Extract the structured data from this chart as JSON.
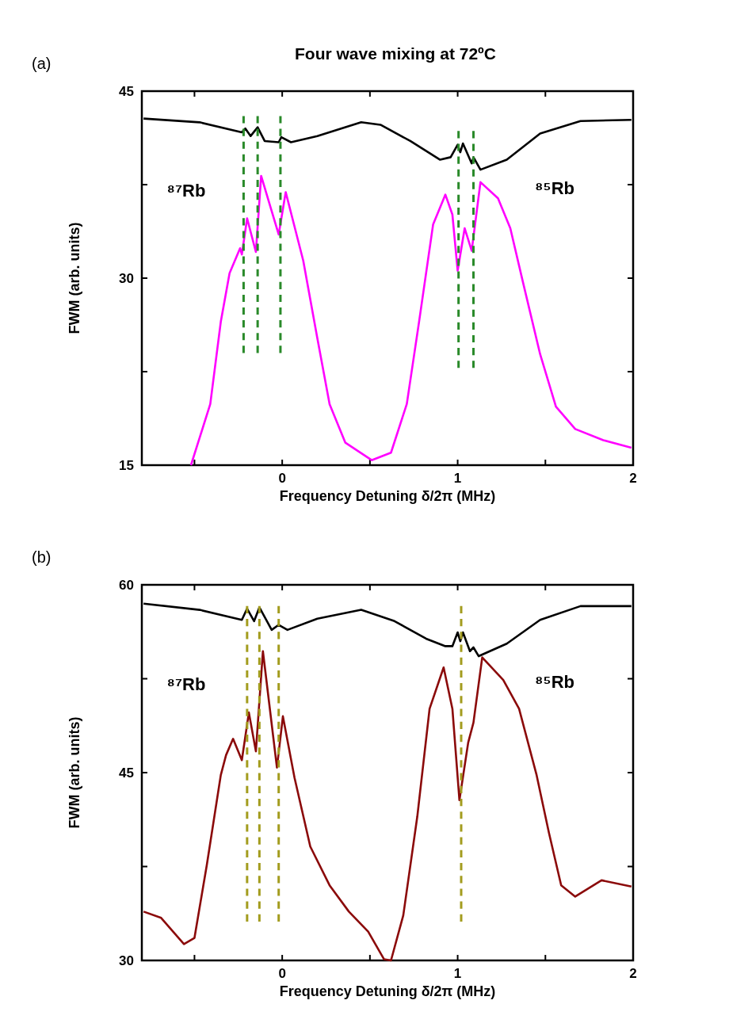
{
  "chart_data": [
    {
      "type": "line",
      "title": "Four wave mixing at 72ºC",
      "xlabel": "Frequency Detuning δ/2π (MHz)",
      "ylabel": "FWM (arb. units)",
      "xlim": [
        -0.8,
        2
      ],
      "xticks": [
        {
          "value": -0.5,
          "label": null
        },
        0,
        {
          "value": 0.5,
          "label": null
        },
        1,
        {
          "value": 1.5,
          "label": null
        },
        2
      ],
      "ylim": [
        15,
        45
      ],
      "yticks": [
        15,
        {
          "value": 22.5,
          "label": null
        },
        30,
        {
          "value": 37.5,
          "label": null
        },
        45
      ],
      "annotations": [
        "(a)",
        "⁸⁷Rb",
        "⁸⁵Rb"
      ],
      "series": [
        {
          "color": "#000000",
          "x": [
            -0.79,
            -0.47,
            -0.23,
            -0.21,
            -0.18,
            -0.14,
            -0.1,
            -0.02,
            -0.005,
            0.05,
            0.2,
            0.45,
            0.56,
            0.73,
            0.9,
            0.96,
            1.0,
            1.015,
            1.03,
            1.08,
            1.09,
            1.13,
            1.28,
            1.47,
            1.7,
            1.99
          ],
          "values": [
            42.8,
            42.5,
            41.7,
            42.0,
            41.4,
            42.1,
            41.0,
            40.9,
            41.3,
            40.9,
            41.4,
            42.5,
            42.3,
            41.0,
            39.5,
            39.7,
            40.7,
            40.1,
            40.8,
            39.2,
            39.7,
            38.7,
            39.5,
            41.6,
            42.6,
            42.7
          ]
        },
        {
          "color": "#ff00ff",
          "x": [
            -0.52,
            -0.41,
            -0.35,
            -0.3,
            -0.24,
            -0.23,
            -0.2,
            -0.15,
            -0.12,
            -0.02,
            0.02,
            0.12,
            0.2,
            0.27,
            0.36,
            0.51,
            0.62,
            0.71,
            0.78,
            0.86,
            0.93,
            0.97,
            1.0,
            1.04,
            1.08,
            1.13,
            1.23,
            1.3,
            1.37,
            1.47,
            1.56,
            1.67,
            1.83,
            1.99
          ],
          "values": [
            15.0,
            19.9,
            26.5,
            30.4,
            32.4,
            31.9,
            34.8,
            32.1,
            38.2,
            33.5,
            36.9,
            31.4,
            25.2,
            19.9,
            16.8,
            15.4,
            16.0,
            19.9,
            26.5,
            34.3,
            36.7,
            35.1,
            30.6,
            34.0,
            32.2,
            37.7,
            36.4,
            34.0,
            29.8,
            23.9,
            19.7,
            17.9,
            17.0,
            16.4
          ]
        },
        {
          "type": "line",
          "line_style": "dashed",
          "color": "#2a8a2a",
          "x": [
            -0.22,
            -0.22
          ],
          "values": [
            43.0,
            24.0
          ]
        },
        {
          "type": "line",
          "line_style": "dashed",
          "color": "#2a8a2a",
          "x": [
            -0.14,
            -0.14
          ],
          "values": [
            43.0,
            24.0
          ]
        },
        {
          "type": "line",
          "line_style": "dashed",
          "color": "#2a8a2a",
          "x": [
            -0.01,
            -0.01
          ],
          "values": [
            43.0,
            24.0
          ]
        },
        {
          "type": "line",
          "line_style": "dashed",
          "color": "#2a8a2a",
          "x": [
            1.005,
            1.005
          ],
          "values": [
            41.8,
            22.8
          ]
        },
        {
          "type": "line",
          "line_style": "dashed",
          "color": "#2a8a2a",
          "x": [
            1.09,
            1.09
          ],
          "values": [
            41.8,
            22.8
          ]
        }
      ]
    },
    {
      "type": "line",
      "xlabel": "Frequency Detuning δ/2π (MHz)",
      "ylabel": "FWM (arb. units)",
      "xlim": [
        -0.8,
        2
      ],
      "xticks": [
        {
          "value": -0.5,
          "label": null
        },
        0,
        {
          "value": 0.5,
          "label": null
        },
        1,
        {
          "value": 1.5,
          "label": null
        },
        2
      ],
      "ylim": [
        30,
        60
      ],
      "yticks": [
        30,
        {
          "value": 37.5,
          "label": null
        },
        45,
        {
          "value": 52.5,
          "label": null
        },
        60
      ],
      "annotations": [
        "(b)",
        "⁸⁷Rb",
        "⁸⁵Rb"
      ],
      "series": [
        {
          "color": "#000000",
          "x": [
            -0.79,
            -0.47,
            -0.23,
            -0.2,
            -0.16,
            -0.13,
            -0.06,
            -0.02,
            0.03,
            0.2,
            0.45,
            0.64,
            0.82,
            0.93,
            0.97,
            1.0,
            1.015,
            1.03,
            1.07,
            1.09,
            1.12,
            1.28,
            1.47,
            1.7,
            1.99
          ],
          "values": [
            58.5,
            58.0,
            57.2,
            58.1,
            57.1,
            58.2,
            56.4,
            56.8,
            56.4,
            57.3,
            58.0,
            57.1,
            55.7,
            55.1,
            55.1,
            56.2,
            55.5,
            56.2,
            54.7,
            55.0,
            54.3,
            55.3,
            57.2,
            58.3,
            58.3
          ]
        },
        {
          "color": "#8b0a0a",
          "x": [
            -0.79,
            -0.69,
            -0.56,
            -0.5,
            -0.43,
            -0.35,
            -0.32,
            -0.28,
            -0.23,
            -0.19,
            -0.15,
            -0.11,
            -0.03,
            0.004,
            0.07,
            0.16,
            0.27,
            0.38,
            0.49,
            0.58,
            0.62,
            0.69,
            0.77,
            0.84,
            0.92,
            0.97,
            1.01,
            1.06,
            1.09,
            1.14,
            1.26,
            1.35,
            1.45,
            1.52,
            1.59,
            1.67,
            1.82,
            1.99
          ],
          "values": [
            33.9,
            33.4,
            31.3,
            31.8,
            37.6,
            44.8,
            46.4,
            47.7,
            46.0,
            49.8,
            46.7,
            54.7,
            45.4,
            49.5,
            44.6,
            39.1,
            36.0,
            33.9,
            32.3,
            30.1,
            30.0,
            33.6,
            41.5,
            50.1,
            53.4,
            50.1,
            42.8,
            47.4,
            49.0,
            54.2,
            52.4,
            50.1,
            44.8,
            40.2,
            36.0,
            35.1,
            36.4,
            35.9
          ]
        },
        {
          "type": "line",
          "line_style": "dashed",
          "color": "#a39c1e",
          "x": [
            -0.2,
            -0.2
          ],
          "values": [
            58.3,
            33.1
          ]
        },
        {
          "type": "line",
          "line_style": "dashed",
          "color": "#a39c1e",
          "x": [
            -0.13,
            -0.13
          ],
          "values": [
            58.3,
            33.1
          ]
        },
        {
          "type": "line",
          "line_style": "dashed",
          "color": "#a39c1e",
          "x": [
            -0.02,
            -0.02
          ],
          "values": [
            58.3,
            33.1
          ]
        },
        {
          "type": "line",
          "line_style": "dashed",
          "color": "#a39c1e",
          "x": [
            1.02,
            1.02
          ],
          "values": [
            58.3,
            33.1
          ]
        }
      ]
    }
  ]
}
